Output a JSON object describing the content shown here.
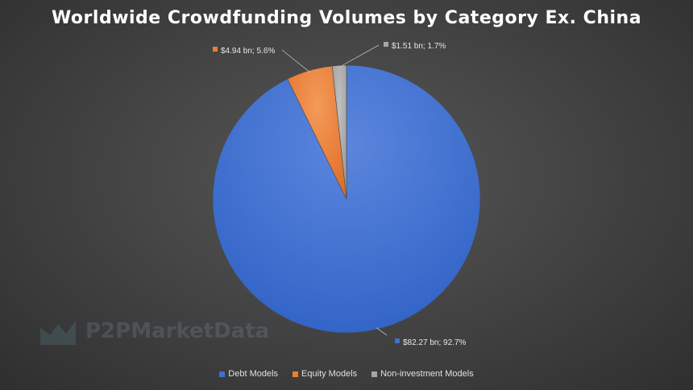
{
  "chart_data": {
    "type": "pie",
    "title": "Worldwide Crowdfunding Volumes by Category Ex. China",
    "slices": [
      {
        "name": "Debt Models",
        "value": 82.27,
        "percent": 92.7,
        "label": "$82.27 bn; 92.7%",
        "color": "#3f6fd0"
      },
      {
        "name": "Equity Models",
        "value": 4.94,
        "percent": 5.6,
        "label": "$4.94 bn; 5.6%",
        "color": "#ed7d31"
      },
      {
        "name": "Non-investment Models",
        "value": 1.51,
        "percent": 1.7,
        "label": "$1.51 bn; 1.7%",
        "color": "#a5a5a5"
      }
    ],
    "legend_position": "bottom"
  },
  "watermark": {
    "text": "P2PMarketData"
  }
}
